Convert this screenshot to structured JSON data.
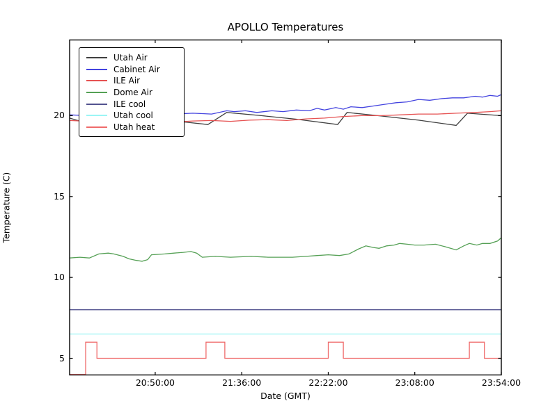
{
  "figure": {
    "background": "#ffffff",
    "axis_color": "#000000",
    "title": "APOLLO Temperatures",
    "xlabel": "Date (GMT)",
    "ylabel": "Temperature (C)"
  },
  "chart_data": {
    "type": "line",
    "title": "APOLLO Temperatures",
    "xlabel": "Date (GMT)",
    "ylabel": "Temperature (C)",
    "grid": false,
    "legend_position": "upper left",
    "x_axis": {
      "ticks": [
        "20:50:00",
        "21:36:00",
        "22:22:00",
        "23:08:00",
        "23:54:00"
      ],
      "range": [
        "20:04:30",
        "23:54:00"
      ]
    },
    "y_axis": {
      "ticks": [
        5,
        10,
        15,
        20
      ],
      "range": [
        3.97,
        24.68
      ]
    },
    "series": [
      {
        "name": "Utah Air",
        "color": "#3f3f3f",
        "points": [
          [
            "20:04:30",
            19.85
          ],
          [
            "20:13",
            19.55
          ],
          [
            "20:22",
            20.25
          ],
          [
            "20:40",
            20.0
          ],
          [
            "21:00",
            19.68
          ],
          [
            "21:18",
            19.45
          ],
          [
            "21:28",
            20.2
          ],
          [
            "21:45",
            20.02
          ],
          [
            "22:05",
            19.78
          ],
          [
            "22:27",
            19.45
          ],
          [
            "22:32",
            20.2
          ],
          [
            "22:50",
            19.98
          ],
          [
            "23:10",
            19.72
          ],
          [
            "23:30",
            19.4
          ],
          [
            "23:36",
            20.15
          ],
          [
            "23:45",
            20.08
          ],
          [
            "23:54",
            20.0
          ]
        ]
      },
      {
        "name": "Cabinet Air",
        "color": "#4343df",
        "points": [
          [
            "20:04:30",
            20.05
          ],
          [
            "20:15",
            20.0
          ],
          [
            "20:30",
            20.1
          ],
          [
            "20:45",
            20.05
          ],
          [
            "21:00",
            20.1
          ],
          [
            "21:10",
            20.15
          ],
          [
            "21:20",
            20.1
          ],
          [
            "21:28",
            20.3
          ],
          [
            "21:32",
            20.25
          ],
          [
            "21:38",
            20.3
          ],
          [
            "21:44",
            20.2
          ],
          [
            "21:52",
            20.3
          ],
          [
            "21:58",
            20.25
          ],
          [
            "22:05",
            20.35
          ],
          [
            "22:12",
            20.3
          ],
          [
            "22:16",
            20.45
          ],
          [
            "22:20",
            20.35
          ],
          [
            "22:26",
            20.5
          ],
          [
            "22:30",
            20.4
          ],
          [
            "22:34",
            20.55
          ],
          [
            "22:40",
            20.5
          ],
          [
            "22:46",
            20.6
          ],
          [
            "22:52",
            20.7
          ],
          [
            "22:58",
            20.8
          ],
          [
            "23:04",
            20.85
          ],
          [
            "23:10",
            21.0
          ],
          [
            "23:16",
            20.95
          ],
          [
            "23:22",
            21.05
          ],
          [
            "23:28",
            21.1
          ],
          [
            "23:34",
            21.1
          ],
          [
            "23:40",
            21.2
          ],
          [
            "23:44",
            21.15
          ],
          [
            "23:48",
            21.25
          ],
          [
            "23:52",
            21.2
          ],
          [
            "23:54",
            21.3
          ]
        ]
      },
      {
        "name": "ILE Air",
        "color": "#e65252",
        "points": [
          [
            "20:04:30",
            19.7
          ],
          [
            "20:15",
            19.65
          ],
          [
            "20:30",
            19.6
          ],
          [
            "20:45",
            19.65
          ],
          [
            "21:00",
            19.6
          ],
          [
            "21:10",
            19.67
          ],
          [
            "21:20",
            19.7
          ],
          [
            "21:30",
            19.65
          ],
          [
            "21:40",
            19.72
          ],
          [
            "21:50",
            19.75
          ],
          [
            "22:00",
            19.7
          ],
          [
            "22:10",
            19.8
          ],
          [
            "22:20",
            19.85
          ],
          [
            "22:30",
            19.95
          ],
          [
            "22:40",
            20.0
          ],
          [
            "22:50",
            20.0
          ],
          [
            "23:00",
            20.05
          ],
          [
            "23:10",
            20.1
          ],
          [
            "23:20",
            20.1
          ],
          [
            "23:30",
            20.15
          ],
          [
            "23:40",
            20.2
          ],
          [
            "23:48",
            20.25
          ],
          [
            "23:54",
            20.3
          ]
        ]
      },
      {
        "name": "Dome Air",
        "color": "#55a055",
        "points": [
          [
            "20:04:30",
            11.2
          ],
          [
            "20:10",
            11.25
          ],
          [
            "20:15",
            11.2
          ],
          [
            "20:20",
            11.45
          ],
          [
            "20:25",
            11.5
          ],
          [
            "20:28",
            11.45
          ],
          [
            "20:33",
            11.3
          ],
          [
            "20:36",
            11.15
          ],
          [
            "20:40",
            11.05
          ],
          [
            "20:43",
            11.0
          ],
          [
            "20:46",
            11.1
          ],
          [
            "20:48",
            11.4
          ],
          [
            "20:55",
            11.45
          ],
          [
            "21:00",
            11.5
          ],
          [
            "21:05",
            11.55
          ],
          [
            "21:09",
            11.6
          ],
          [
            "21:12",
            11.5
          ],
          [
            "21:15",
            11.25
          ],
          [
            "21:22",
            11.3
          ],
          [
            "21:30",
            11.25
          ],
          [
            "21:41",
            11.3
          ],
          [
            "21:50",
            11.25
          ],
          [
            "22:03",
            11.25
          ],
          [
            "22:10",
            11.3
          ],
          [
            "22:16",
            11.35
          ],
          [
            "22:22",
            11.4
          ],
          [
            "22:28",
            11.35
          ],
          [
            "22:33",
            11.45
          ],
          [
            "22:38",
            11.75
          ],
          [
            "22:42",
            11.95
          ],
          [
            "22:46",
            11.85
          ],
          [
            "22:49",
            11.8
          ],
          [
            "22:53",
            11.95
          ],
          [
            "22:57",
            12.0
          ],
          [
            "23:00",
            12.1
          ],
          [
            "23:04",
            12.05
          ],
          [
            "23:08",
            12.0
          ],
          [
            "23:13",
            12.0
          ],
          [
            "23:19",
            12.05
          ],
          [
            "23:24",
            11.9
          ],
          [
            "23:30",
            11.7
          ],
          [
            "23:34",
            11.95
          ],
          [
            "23:37",
            12.1
          ],
          [
            "23:41",
            12.0
          ],
          [
            "23:44",
            12.1
          ],
          [
            "23:48",
            12.1
          ],
          [
            "23:52",
            12.25
          ],
          [
            "23:54",
            12.45
          ]
        ]
      },
      {
        "name": "ILE cool",
        "color": "#52528f",
        "points": [
          [
            "20:04:30",
            8.0
          ],
          [
            "23:54",
            8.0
          ]
        ]
      },
      {
        "name": "Utah cool",
        "color": "#9bf5f5",
        "points": [
          [
            "20:04:30",
            6.5
          ],
          [
            "23:54",
            6.5
          ]
        ]
      },
      {
        "name": "Utah heat",
        "color": "#ef6a6a",
        "points": [
          [
            "20:04:30",
            4.0
          ],
          [
            "20:13",
            4.0
          ],
          [
            "20:13",
            6.0
          ],
          [
            "20:19",
            6.0
          ],
          [
            "20:19",
            5.0
          ],
          [
            "21:17",
            5.0
          ],
          [
            "21:17",
            6.0
          ],
          [
            "21:27",
            6.0
          ],
          [
            "21:27",
            5.0
          ],
          [
            "22:22",
            5.0
          ],
          [
            "22:22",
            6.0
          ],
          [
            "22:30",
            6.0
          ],
          [
            "22:30",
            5.0
          ],
          [
            "23:37",
            5.0
          ],
          [
            "23:37",
            6.0
          ],
          [
            "23:45",
            6.0
          ],
          [
            "23:45",
            5.0
          ],
          [
            "23:54",
            5.0
          ]
        ]
      }
    ]
  }
}
